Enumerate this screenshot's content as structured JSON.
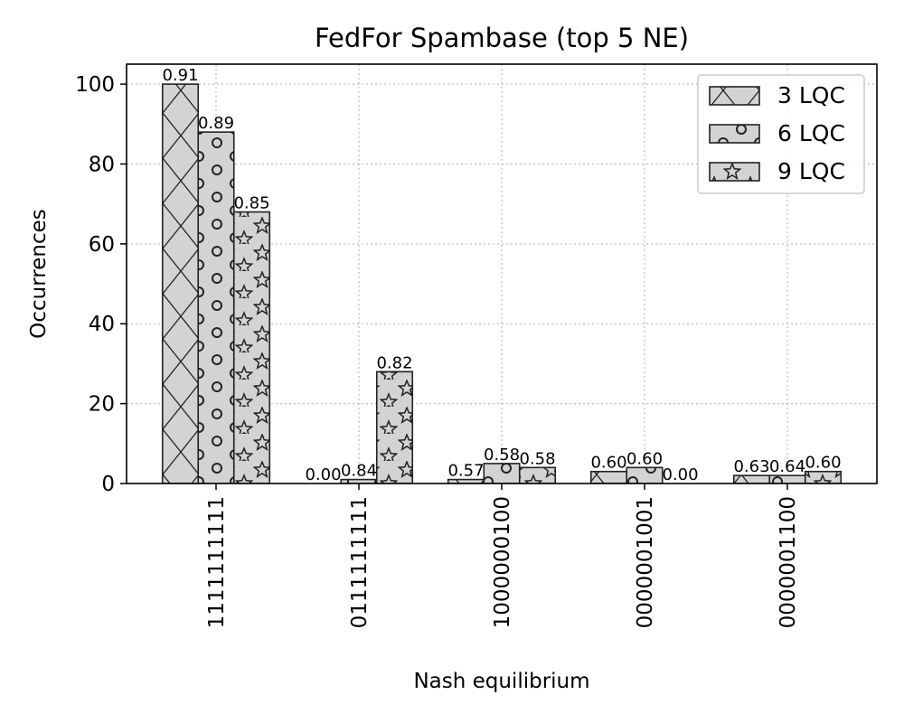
{
  "chart_data": {
    "type": "bar",
    "title": "FedFor Spambase (top 5 NE)",
    "xlabel": "Nash equilibrium",
    "ylabel": "Occurrences",
    "categories": [
      "1111111111",
      "0111111111",
      "1000000100",
      "0000001001",
      "0000001100"
    ],
    "ylim": [
      0,
      105
    ],
    "yticks": [
      0,
      20,
      40,
      60,
      80,
      100
    ],
    "grid": true,
    "legend_position": "top-right",
    "series": [
      {
        "name": "3 LQC",
        "hatch": "x",
        "values": [
          100,
          0,
          1,
          3,
          2
        ],
        "labels": [
          "0.91",
          "0.00",
          "0.57",
          "0.60",
          "0.63"
        ]
      },
      {
        "name": "6 LQC",
        "hatch": "o",
        "values": [
          88,
          1,
          5,
          4,
          2
        ],
        "labels": [
          "0.89",
          "0.84",
          "0.58",
          "0.60",
          "0.64"
        ]
      },
      {
        "name": "9 LQC",
        "hatch": "*",
        "values": [
          68,
          28,
          4,
          0,
          3
        ],
        "labels": [
          "0.85",
          "0.82",
          "0.58",
          "0.00",
          "0.60"
        ]
      }
    ],
    "bar_fill": "#d3d3d3",
    "bar_edge": "#222222"
  }
}
